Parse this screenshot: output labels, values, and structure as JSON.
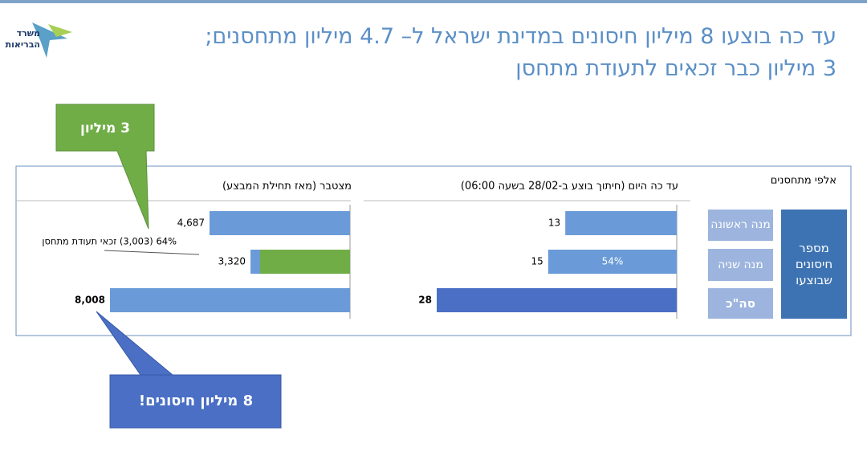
{
  "header": {
    "title_lines": [
      "עד כה בוצעו 8 מיליון חיסונים במדינת ישראל ל– 4.7 מיליון מתחסנים;",
      "3 מיליון כבר זכאים לתעודת מתחסן"
    ],
    "logo": [
      "משרד",
      "הבריאות"
    ]
  },
  "table": {
    "unit_label": "אלפי מתחסנים",
    "row_group_label": "מספר חיסונים שבוצעו",
    "rows": [
      "מנה ראשונה",
      "מנה שניה",
      "סה\"כ"
    ]
  },
  "callouts": [
    "3 מיליון",
    "8 מיליון חיסונים!"
  ],
  "chart_data": [
    {
      "type": "bar",
      "orientation": "horizontal",
      "reverse": true,
      "title": "עד כה היום (חיתוך בוצע ב-28/02 בשעה 06:00)",
      "values": [
        13,
        15,
        28
      ],
      "colors": [
        "#6a9bd8",
        "#6a9bd8",
        "#4a6fc5"
      ],
      "xlim": [
        0,
        28
      ],
      "bold_rows": [
        2
      ],
      "annotation": "54%"
    },
    {
      "type": "bar",
      "orientation": "horizontal",
      "reverse": true,
      "title": "מצטבר (מאז תחילת המבצע)",
      "values": [
        4687,
        3320,
        8008
      ],
      "value_labels": [
        "4,687",
        "3,320",
        "8,008"
      ],
      "colors": [
        "#6a9bd8",
        "#6a9bd8",
        "#6a9bd8"
      ],
      "xlim": [
        0,
        8008
      ],
      "bold_rows": [
        2
      ],
      "highlight": {
        "row": 1,
        "value": 3003,
        "color": "#70ad47",
        "label": "64% (3,003) זכאי תעודת מתחסן"
      }
    }
  ]
}
